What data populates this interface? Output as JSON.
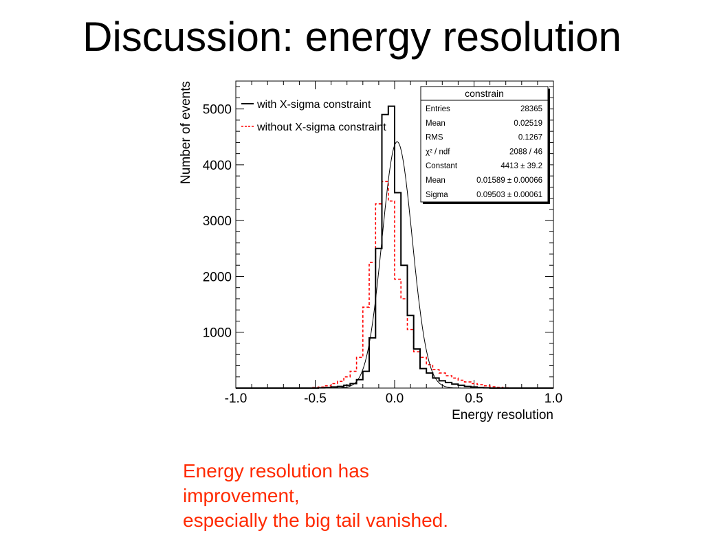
{
  "slide": {
    "title": "Discussion: energy resolution",
    "caption_lines": [
      "Energy resolution has",
      "improvement,",
      "especially the big tail vanished."
    ]
  },
  "colors": {
    "title": "#000000",
    "caption": "#ff2a00",
    "with_constraint": "#000000",
    "without_constraint": "#ff0000",
    "fit_curve": "#000000"
  },
  "chart_data": {
    "type": "histogram",
    "title": "",
    "xlabel": "Energy resolution",
    "ylabel": "Number of events",
    "xlim": [
      -1.0,
      1.0
    ],
    "ylim": [
      0,
      5500
    ],
    "x_ticks": [
      -1.0,
      -0.5,
      0.0,
      0.5,
      1.0
    ],
    "x_tick_labels": [
      "-1.0",
      "-0.5",
      "0.0",
      "0.5",
      "1.0"
    ],
    "y_ticks": [
      1000,
      2000,
      3000,
      4000,
      5000
    ],
    "y_tick_labels": [
      "1000",
      "2000",
      "3000",
      "4000",
      "5000"
    ],
    "legend": {
      "placement": "top-left",
      "entries": [
        "with X-sigma constraint",
        "without X-sigma constraint"
      ]
    },
    "bin_width": 0.04,
    "bin_centers": [
      -0.98,
      -0.94,
      -0.9,
      -0.86,
      -0.82,
      -0.78,
      -0.74,
      -0.7,
      -0.66,
      -0.62,
      -0.58,
      -0.54,
      -0.5,
      -0.46,
      -0.42,
      -0.38,
      -0.34,
      -0.3,
      -0.26,
      -0.22,
      -0.18,
      -0.14,
      -0.1,
      -0.06,
      -0.02,
      0.02,
      0.06,
      0.1,
      0.14,
      0.18,
      0.22,
      0.26,
      0.3,
      0.34,
      0.38,
      0.42,
      0.46,
      0.5,
      0.54,
      0.58,
      0.62,
      0.66,
      0.7,
      0.74,
      0.78,
      0.82,
      0.86,
      0.9,
      0.94,
      0.98
    ],
    "series": [
      {
        "name": "with X-sigma constraint",
        "style": "solid",
        "values": [
          0,
          0,
          0,
          0,
          0,
          0,
          0,
          0,
          0,
          0,
          0,
          0,
          0,
          5,
          10,
          20,
          30,
          50,
          80,
          150,
          300,
          900,
          2500,
          4900,
          5050,
          3500,
          2200,
          1300,
          700,
          350,
          270,
          180,
          130,
          100,
          70,
          50,
          30,
          20,
          10,
          5,
          0,
          0,
          0,
          0,
          0,
          0,
          0,
          0,
          0,
          0
        ]
      },
      {
        "name": "without X-sigma constraint",
        "style": "dashed",
        "values": [
          0,
          0,
          0,
          0,
          0,
          0,
          0,
          0,
          0,
          0,
          0,
          0,
          10,
          20,
          40,
          80,
          120,
          200,
          300,
          550,
          1450,
          2250,
          3300,
          3700,
          3350,
          1950,
          1600,
          1050,
          650,
          550,
          420,
          330,
          270,
          220,
          180,
          140,
          110,
          80,
          60,
          40,
          25,
          15,
          5,
          0,
          0,
          0,
          0,
          0,
          0,
          0
        ]
      }
    ],
    "fit": {
      "function": "gaus",
      "constant": 4413,
      "mean": 0.01589,
      "sigma": 0.09503
    },
    "stats_box": {
      "title": "constrain",
      "rows": [
        {
          "label": "Entries",
          "value": "28365"
        },
        {
          "label": "Mean",
          "value": "0.02519"
        },
        {
          "label": "RMS",
          "value": "0.1267"
        },
        {
          "label": "χ² / ndf",
          "value": "2088 / 46"
        },
        {
          "label": "Constant",
          "value": "4413 ± 39.2"
        },
        {
          "label": "Mean",
          "value": "0.01589 ± 0.00066"
        },
        {
          "label": "Sigma",
          "value": "0.09503 ± 0.00061"
        }
      ]
    }
  }
}
